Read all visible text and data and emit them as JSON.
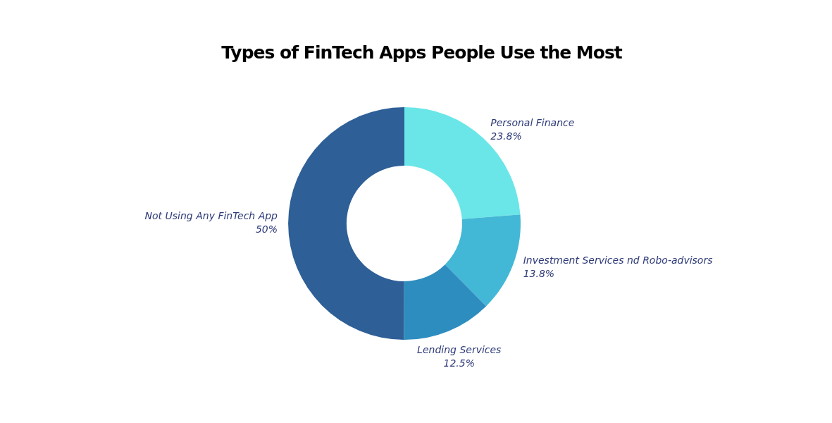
{
  "chart_data": {
    "type": "donut",
    "title": "Types of FinTech Apps People Use the Most",
    "categories": [
      "Personal Finance",
      "Investment Services nd Robo-advisors",
      "Lending Services",
      "Not Using Any FinTech App"
    ],
    "values": [
      23.8,
      13.8,
      12.5,
      50
    ],
    "value_labels": [
      "23.8%",
      "13.8%",
      "12.5%",
      "50%"
    ],
    "colors": [
      "#6ae6e8",
      "#43b8d6",
      "#2e8dbf",
      "#2e5f97"
    ],
    "legend": false
  }
}
